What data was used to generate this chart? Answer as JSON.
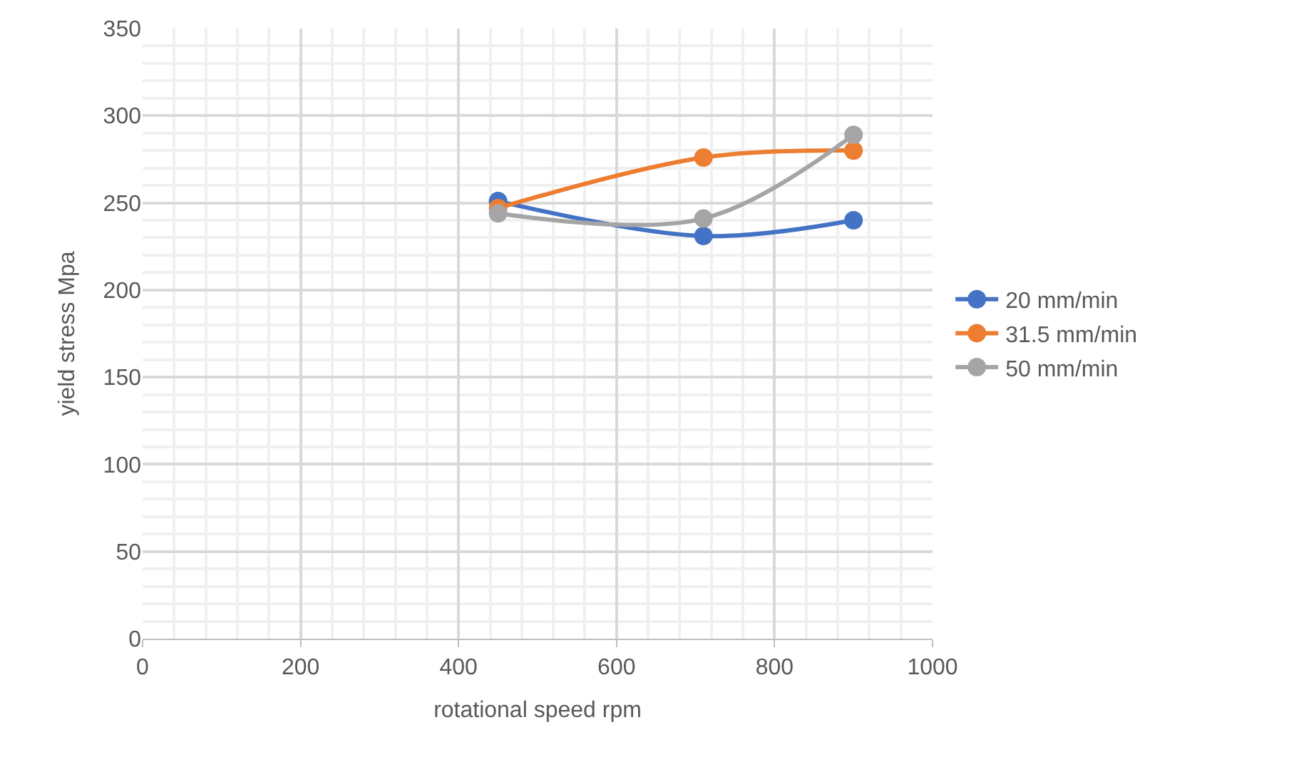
{
  "chart_data": {
    "type": "line",
    "xlabel": "rotational speed rpm",
    "ylabel": "yield stress Mpa",
    "x": [
      450,
      710,
      900
    ],
    "series": [
      {
        "name": "20 mm/min",
        "color": "#4472c4",
        "values": [
          251,
          231,
          240
        ]
      },
      {
        "name": "31.5 mm/min",
        "color": "#ed7d31",
        "values": [
          247,
          276,
          280
        ]
      },
      {
        "name": "50 mm/min",
        "color": "#a5a5a5",
        "values": [
          244,
          241,
          289
        ]
      }
    ],
    "xlim": [
      0,
      1000
    ],
    "xticks": [
      0,
      200,
      400,
      600,
      800,
      1000
    ],
    "ylim": [
      0,
      350
    ],
    "yticks": [
      0,
      50,
      100,
      150,
      200,
      250,
      300,
      350
    ],
    "grid": true,
    "legend": "right",
    "marker": "circle",
    "line_style": "solid"
  }
}
